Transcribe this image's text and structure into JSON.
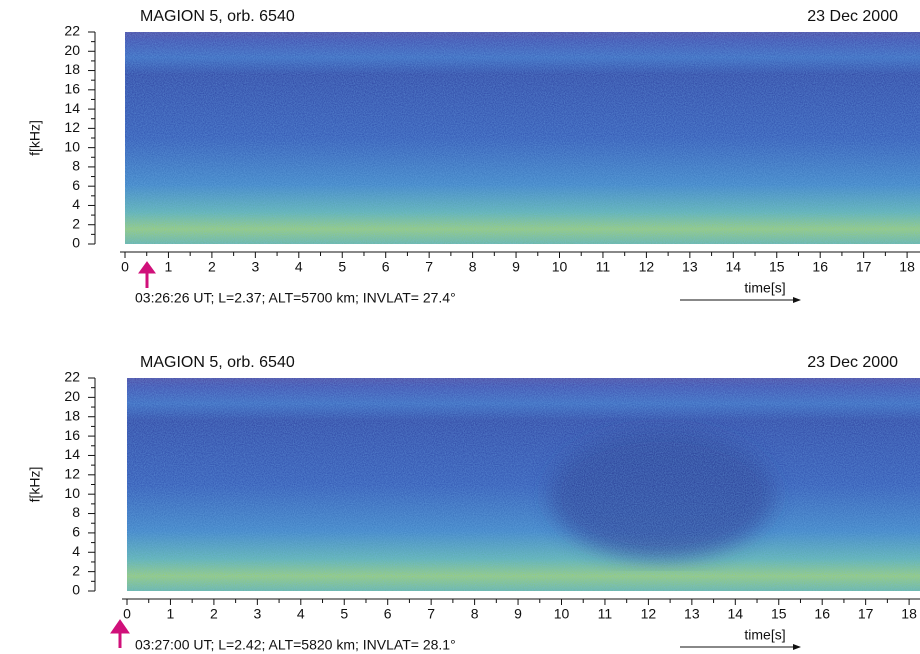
{
  "chart_data": [
    {
      "type": "spectrogram",
      "title": "MAGION 5, orb. 6540",
      "date": "23 Dec 2000",
      "ylabel": "f[kHz]",
      "xlabel": "time[s]",
      "annotation": "03:26:26 UT; L=2.37; ALT=5700 km; INVLAT= 27.4°",
      "xlim": [
        0,
        18.3
      ],
      "ylim": [
        0,
        22
      ],
      "xticks": [
        0,
        1,
        2,
        3,
        4,
        5,
        6,
        7,
        8,
        9,
        10,
        11,
        12,
        13,
        14,
        15,
        16,
        17,
        18
      ],
      "yticks": [
        0,
        2,
        4,
        6,
        8,
        10,
        12,
        14,
        16,
        18,
        20,
        22
      ]
    },
    {
      "type": "spectrogram",
      "title": "MAGION 5, orb. 6540",
      "date": "23 Dec 2000",
      "ylabel": "f[kHz]",
      "xlabel": "time[s]",
      "annotation": "03:27:00 UT; L=2.42; ALT=5820 km; INVLAT= 28.1°",
      "xlim": [
        0,
        18.3
      ],
      "ylim": [
        0,
        22
      ],
      "xticks": [
        0,
        1,
        2,
        3,
        4,
        5,
        6,
        7,
        8,
        9,
        10,
        11,
        12,
        13,
        14,
        15,
        16,
        17,
        18
      ],
      "yticks": [
        0,
        2,
        4,
        6,
        8,
        10,
        12,
        14,
        16,
        18,
        20,
        22
      ]
    }
  ]
}
